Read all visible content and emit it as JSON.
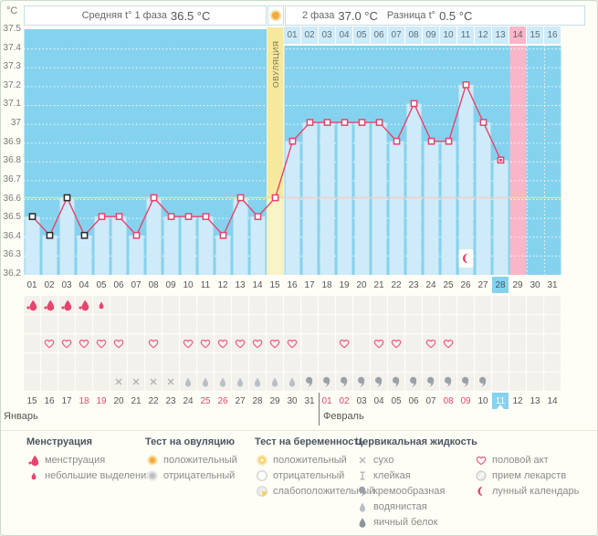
{
  "units_label": "°C",
  "header": {
    "phase1_label": "Средняя t° 1 фаза",
    "phase1_value": "36.5 °C",
    "phase2_label": "2 фаза",
    "phase2_value": "37.0 °C",
    "diff_label": "Разница t°",
    "diff_value": "0.5 °C"
  },
  "chart_data": {
    "type": "line",
    "ylabel": "°C",
    "ylim": [
      36.2,
      37.5
    ],
    "ytick_labels": [
      "37.5",
      "37.4",
      "37.3",
      "37.2",
      "37.1",
      "37",
      "36.9",
      "36.8",
      "36.7",
      "36.6",
      "36.5",
      "36.4",
      "36.3",
      "36.2"
    ],
    "ytick_values": [
      37.5,
      37.4,
      37.3,
      37.2,
      37.1,
      37.0,
      36.9,
      36.8,
      36.7,
      36.6,
      36.5,
      36.4,
      36.3,
      36.2
    ],
    "x_days": [
      1,
      2,
      3,
      4,
      5,
      6,
      7,
      8,
      9,
      10,
      11,
      12,
      13,
      14,
      15,
      16,
      17,
      18,
      19,
      20,
      21,
      22,
      23,
      24,
      25,
      26,
      27,
      28,
      29,
      30,
      31
    ],
    "temps": [
      36.5,
      36.4,
      36.6,
      36.4,
      36.5,
      36.5,
      36.4,
      36.6,
      36.5,
      36.5,
      36.5,
      36.4,
      36.6,
      36.5,
      36.6,
      36.9,
      37.0,
      37.0,
      37.0,
      37.0,
      37.0,
      36.9,
      37.1,
      36.9,
      36.9,
      37.2,
      37.0,
      36.8,
      null,
      null,
      null
    ],
    "coverline": 36.6,
    "ovulation_day": 15,
    "ovulation_label": "ОВУЛЯЦИЯ",
    "expected_period_day": 29,
    "current_day": 28,
    "black_marker_days": [
      1,
      2,
      3,
      4
    ],
    "moon_day": 26,
    "phase1_avg": "36.5",
    "phase2_avg": "37.0",
    "diff": "0.5"
  },
  "dpo_row": {
    "values": [
      "01",
      "02",
      "03",
      "04",
      "05",
      "06",
      "07",
      "08",
      "09",
      "10",
      "11",
      "12",
      "13",
      "14",
      "15",
      "16"
    ],
    "highlight": "14"
  },
  "day_row": {
    "values": [
      "01",
      "02",
      "03",
      "04",
      "05",
      "06",
      "07",
      "08",
      "09",
      "10",
      "11",
      "12",
      "13",
      "14",
      "15",
      "16",
      "17",
      "18",
      "19",
      "20",
      "21",
      "22",
      "23",
      "24",
      "25",
      "26",
      "27",
      "28",
      "29",
      "30",
      "31"
    ],
    "highlight": "28"
  },
  "symbol_rows": {
    "menstruation_big_days": [
      1,
      2,
      3,
      4
    ],
    "menstruation_small_days": [
      5
    ],
    "ovulation_test_days": [],
    "intercourse_days": [
      2,
      3,
      4,
      5,
      6,
      8,
      10,
      11,
      12,
      13,
      14,
      15,
      16,
      19,
      21,
      22,
      24,
      25
    ],
    "pregnancy_test_days": [],
    "cervical_dry_days": [
      6,
      7,
      8,
      9
    ],
    "cervical_watery_days": [
      10,
      11,
      12,
      13,
      14,
      15,
      16
    ],
    "cervical_creamy_days": [
      17,
      18,
      19,
      20,
      21,
      22,
      23,
      24,
      25,
      26,
      27
    ]
  },
  "calendar": {
    "months": [
      {
        "label": "Январь",
        "dates": [
          "15",
          "16",
          "17",
          "18",
          "19",
          "20",
          "21",
          "22",
          "23",
          "24",
          "25",
          "26",
          "27",
          "28",
          "29",
          "30",
          "31"
        ],
        "weekend": [
          "18",
          "19",
          "25",
          "26"
        ],
        "today": ""
      },
      {
        "label": "Февраль",
        "dates": [
          "01",
          "02",
          "03",
          "04",
          "05",
          "06",
          "07",
          "08",
          "09",
          "10",
          "11",
          "12",
          "13",
          "14"
        ],
        "weekend": [
          "01",
          "02",
          "08",
          "09"
        ],
        "today": "11"
      }
    ]
  },
  "legend": {
    "groups": [
      {
        "title": "Менструация",
        "items": [
          {
            "icon": "drop_big",
            "label": "менструация"
          },
          {
            "icon": "drop_small",
            "label": "небольшие выделения"
          }
        ]
      },
      {
        "title": "Тест на овуляцию",
        "items": [
          {
            "icon": "ovu_pos",
            "label": "положительный"
          },
          {
            "icon": "ovu_neg",
            "label": "отрицательный"
          }
        ]
      },
      {
        "title": "Тест на беременность",
        "items": [
          {
            "icon": "preg_pos",
            "label": "положительный"
          },
          {
            "icon": "preg_neg",
            "label": "отрицательный"
          },
          {
            "icon": "preg_weak",
            "label": "слабоположительный"
          }
        ]
      },
      {
        "title": "Цервикальная жидкость",
        "items": [
          {
            "icon": "dry",
            "label": "сухо"
          },
          {
            "icon": "sticky",
            "label": "клейкая"
          },
          {
            "icon": "creamy",
            "label": "кремообразная"
          },
          {
            "icon": "watery",
            "label": "водянистая"
          },
          {
            "icon": "eggwhite",
            "label": "яичный белок"
          }
        ]
      },
      {
        "title": "",
        "items": [
          {
            "icon": "heart",
            "label": "половой акт"
          },
          {
            "icon": "pill",
            "label": "прием лекарств"
          },
          {
            "icon": "moon",
            "label": "лунный календарь"
          }
        ]
      }
    ]
  },
  "colors": {
    "accent_pink": "#e8436e",
    "plot_blue": "#85d2ee",
    "column_blue": "#cfeaf8",
    "ovulation_yellow": "#f6e89c",
    "ovulation_column": "#f9f3c8",
    "period_pink": "#f9b6c9",
    "coverline_yellow": "#ebe084",
    "weekend_red": "#e8436e"
  }
}
